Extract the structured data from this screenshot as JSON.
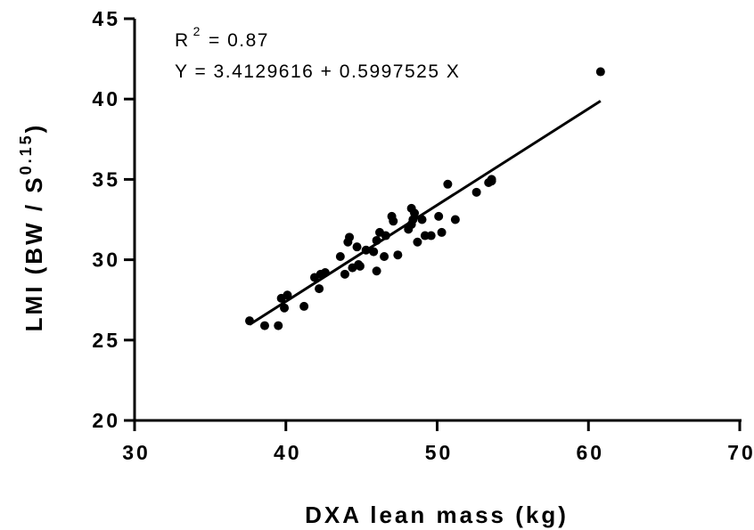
{
  "chart_data": {
    "type": "scatter",
    "xlabel": "DXA lean mass (kg)",
    "ylabel": {
      "prefix": "LMI (BW / S",
      "superscript": "0.15",
      "suffix": ")"
    },
    "xlim": [
      30,
      70
    ],
    "ylim": [
      20,
      45
    ],
    "x_ticks": [
      "30",
      "40",
      "50",
      "60",
      "70"
    ],
    "y_ticks": [
      "20",
      "25",
      "30",
      "35",
      "40",
      "45"
    ],
    "annotations": {
      "r2_label": "R",
      "r2_sup": "2",
      "r2_value": "= 0.87",
      "equation": "Y = 3.4129616 + 0.5997525 X"
    },
    "regression": {
      "intercept": 3.4129616,
      "slope": 0.5997525,
      "x_range": [
        37.6,
        60.8
      ]
    },
    "points": [
      {
        "x": 37.6,
        "y": 26.2
      },
      {
        "x": 38.6,
        "y": 25.9
      },
      {
        "x": 39.5,
        "y": 25.9
      },
      {
        "x": 39.7,
        "y": 27.6
      },
      {
        "x": 39.9,
        "y": 27.0
      },
      {
        "x": 40.1,
        "y": 27.8
      },
      {
        "x": 41.2,
        "y": 27.1
      },
      {
        "x": 41.9,
        "y": 28.9
      },
      {
        "x": 42.2,
        "y": 28.2
      },
      {
        "x": 42.3,
        "y": 29.1
      },
      {
        "x": 42.6,
        "y": 29.2
      },
      {
        "x": 43.6,
        "y": 30.2
      },
      {
        "x": 43.9,
        "y": 29.1
      },
      {
        "x": 44.1,
        "y": 31.1
      },
      {
        "x": 44.2,
        "y": 31.4
      },
      {
        "x": 44.4,
        "y": 29.5
      },
      {
        "x": 44.7,
        "y": 30.8
      },
      {
        "x": 44.8,
        "y": 29.7
      },
      {
        "x": 44.9,
        "y": 29.6
      },
      {
        "x": 45.3,
        "y": 30.6
      },
      {
        "x": 45.8,
        "y": 30.5
      },
      {
        "x": 46.0,
        "y": 31.2
      },
      {
        "x": 46.0,
        "y": 29.3
      },
      {
        "x": 46.2,
        "y": 31.7
      },
      {
        "x": 46.5,
        "y": 30.2
      },
      {
        "x": 46.6,
        "y": 31.5
      },
      {
        "x": 47.0,
        "y": 32.7
      },
      {
        "x": 47.1,
        "y": 32.4
      },
      {
        "x": 47.4,
        "y": 30.3
      },
      {
        "x": 48.1,
        "y": 31.9
      },
      {
        "x": 48.3,
        "y": 33.2
      },
      {
        "x": 48.3,
        "y": 32.2
      },
      {
        "x": 48.4,
        "y": 32.5
      },
      {
        "x": 48.5,
        "y": 32.9
      },
      {
        "x": 48.7,
        "y": 31.1
      },
      {
        "x": 49.0,
        "y": 32.5
      },
      {
        "x": 49.2,
        "y": 31.5
      },
      {
        "x": 49.6,
        "y": 31.5
      },
      {
        "x": 50.1,
        "y": 32.7
      },
      {
        "x": 50.3,
        "y": 31.7
      },
      {
        "x": 50.7,
        "y": 34.7
      },
      {
        "x": 51.2,
        "y": 32.5
      },
      {
        "x": 52.6,
        "y": 34.2
      },
      {
        "x": 53.4,
        "y": 34.8
      },
      {
        "x": 53.6,
        "y": 34.9
      },
      {
        "x": 53.6,
        "y": 35.0
      },
      {
        "x": 60.8,
        "y": 41.7
      }
    ]
  }
}
